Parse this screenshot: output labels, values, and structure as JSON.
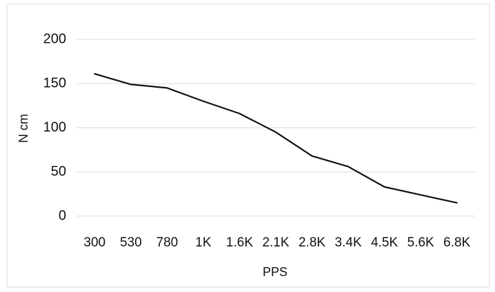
{
  "chart_data": {
    "type": "line",
    "title": "",
    "xlabel": "PPS",
    "ylabel": "N cm",
    "x": [
      "300",
      "530",
      "780",
      "1K",
      "1.6K",
      "2.1K",
      "2.8K",
      "3.4K",
      "4.5K",
      "5.6K",
      "6.8K"
    ],
    "y_ticks": [
      "0",
      "50",
      "100",
      "150",
      "200"
    ],
    "ylim": [
      0,
      200
    ],
    "grid": true,
    "legend": "none",
    "series": [
      {
        "values": [
          161,
          149,
          145,
          130,
          116,
          95,
          68,
          56,
          33,
          24,
          15
        ]
      }
    ]
  },
  "colors": {
    "line": "#111111",
    "grid": "#d9d9d9",
    "frame": "#d9d9d9",
    "text": "#111111"
  }
}
